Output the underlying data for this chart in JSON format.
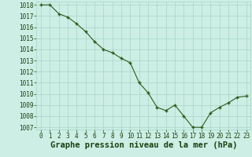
{
  "x": [
    0,
    1,
    2,
    3,
    4,
    5,
    6,
    7,
    8,
    9,
    10,
    11,
    12,
    13,
    14,
    15,
    16,
    17,
    18,
    19,
    20,
    21,
    22,
    23
  ],
  "y": [
    1018,
    1018,
    1017.2,
    1016.9,
    1016.3,
    1015.6,
    1014.7,
    1014.0,
    1013.7,
    1013.2,
    1012.8,
    1011.0,
    1010.1,
    1008.8,
    1008.5,
    1009.0,
    1008.0,
    1007.0,
    1007.0,
    1008.3,
    1008.8,
    1009.2,
    1009.7,
    1009.8
  ],
  "ylim_min": 1006.8,
  "ylim_max": 1018.3,
  "yticks": [
    1007,
    1008,
    1009,
    1010,
    1011,
    1012,
    1013,
    1014,
    1015,
    1016,
    1017,
    1018
  ],
  "xticks": [
    0,
    1,
    2,
    3,
    4,
    5,
    6,
    7,
    8,
    9,
    10,
    11,
    12,
    13,
    14,
    15,
    16,
    17,
    18,
    19,
    20,
    21,
    22,
    23
  ],
  "xlabel": "Graphe pression niveau de la mer (hPa)",
  "line_color": "#2d5a1b",
  "marker": "+",
  "marker_size": 3,
  "bg_color": "#cceee4",
  "grid_color": "#aad4c8",
  "text_color": "#1a4010",
  "tick_fontsize": 5.5,
  "xlabel_fontsize": 7.5
}
